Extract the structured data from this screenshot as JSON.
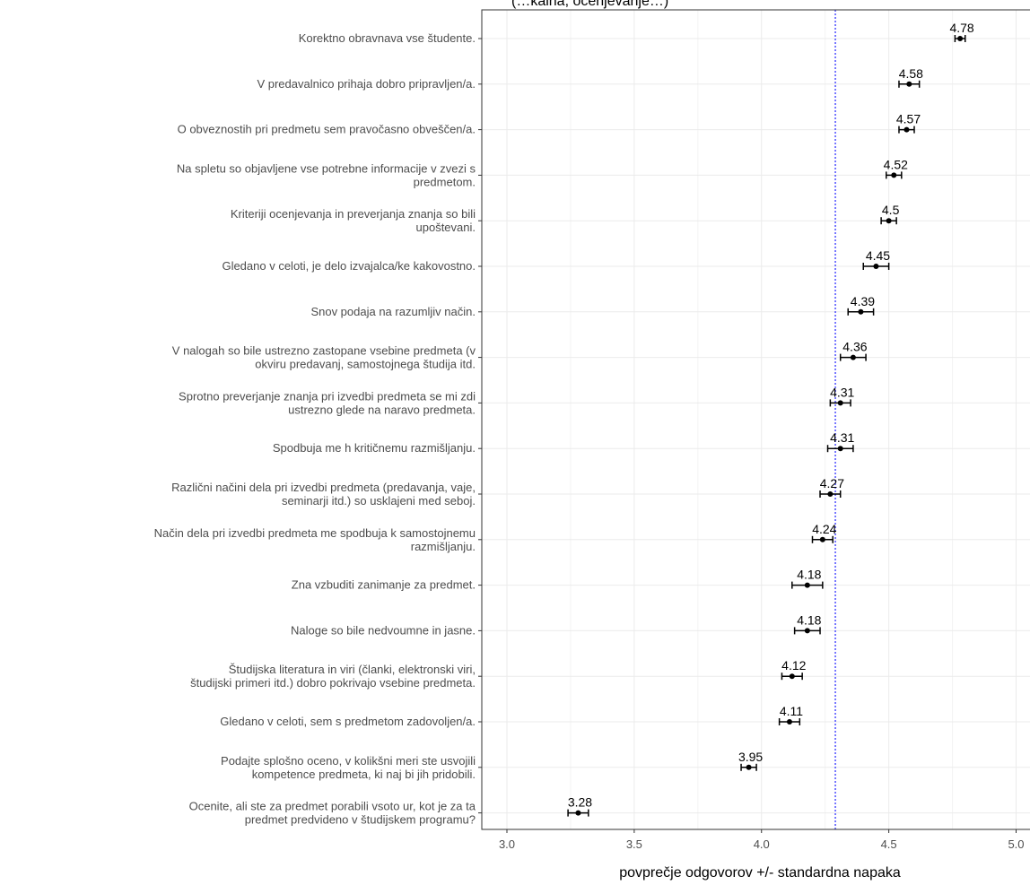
{
  "chart_data": {
    "type": "scatter",
    "orientation": "horizontal",
    "title_fragment": "(…kalna, ocenjevanje…)",
    "xlabel": "povprečje odgovorov +/- standardna napaka",
    "ylabel": "",
    "xlim": [
      2.9,
      5.05
    ],
    "xticks": [
      "3.0",
      "3.5",
      "4.0",
      "4.5",
      "5.0"
    ],
    "xtick_values": [
      3.0,
      3.5,
      4.0,
      4.5,
      5.0
    ],
    "reference_line": {
      "value": 4.29,
      "style": "dotted",
      "color": "#3333ff"
    },
    "grid": true,
    "items": [
      {
        "label": [
          "Korektno obravnava vse študente."
        ],
        "mean": 4.78,
        "mean_label": "4.78",
        "se": 0.02
      },
      {
        "label": [
          "V predavalnico prihaja dobro pripravljen/a."
        ],
        "mean": 4.58,
        "mean_label": "4.58",
        "se": 0.04
      },
      {
        "label": [
          "O obveznostih pri predmetu sem pravočasno obveščen/a."
        ],
        "mean": 4.57,
        "mean_label": "4.57",
        "se": 0.03
      },
      {
        "label": [
          "Na spletu so objavljene vse potrebne informacije v zvezi s",
          "predmetom."
        ],
        "mean": 4.52,
        "mean_label": "4.52",
        "se": 0.03
      },
      {
        "label": [
          "Kriteriji ocenjevanja in preverjanja znanja so bili",
          "upoštevani."
        ],
        "mean": 4.5,
        "mean_label": "4.5",
        "se": 0.03
      },
      {
        "label": [
          "Gledano v celoti, je delo izvajalca/ke kakovostno."
        ],
        "mean": 4.45,
        "mean_label": "4.45",
        "se": 0.05
      },
      {
        "label": [
          "Snov podaja na razumljiv način."
        ],
        "mean": 4.39,
        "mean_label": "4.39",
        "se": 0.05
      },
      {
        "label": [
          "V nalogah so bile ustrezno zastopane vsebine predmeta (v",
          "okviru predavanj, samostojnega študija itd."
        ],
        "mean": 4.36,
        "mean_label": "4.36",
        "se": 0.05
      },
      {
        "label": [
          "Sprotno preverjanje znanja pri izvedbi predmeta se mi zdi",
          "ustrezno glede na naravo predmeta."
        ],
        "mean": 4.31,
        "mean_label": "4.31",
        "se": 0.04
      },
      {
        "label": [
          "Spodbuja me h kritičnemu razmišljanju."
        ],
        "mean": 4.31,
        "mean_label": "4.31",
        "se": 0.05
      },
      {
        "label": [
          "Različni načini dela pri izvedbi predmeta (predavanja, vaje,",
          "seminarji itd.) so usklajeni med seboj."
        ],
        "mean": 4.27,
        "mean_label": "4.27",
        "se": 0.04
      },
      {
        "label": [
          "Način dela pri izvedbi predmeta me spodbuja k samostojnemu",
          "razmišljanju."
        ],
        "mean": 4.24,
        "mean_label": "4.24",
        "se": 0.04
      },
      {
        "label": [
          "Zna vzbuditi zanimanje za predmet."
        ],
        "mean": 4.18,
        "mean_label": "4.18",
        "se": 0.06
      },
      {
        "label": [
          "Naloge so bile nedvoumne in jasne."
        ],
        "mean": 4.18,
        "mean_label": "4.18",
        "se": 0.05
      },
      {
        "label": [
          "Študijska literatura in viri (članki, elektronski viri,",
          "študijski primeri itd.) dobro pokrivajo vsebine predmeta."
        ],
        "mean": 4.12,
        "mean_label": "4.12",
        "se": 0.04
      },
      {
        "label": [
          "Gledano v celoti, sem s predmetom zadovoljen/a."
        ],
        "mean": 4.11,
        "mean_label": "4.11",
        "se": 0.04
      },
      {
        "label": [
          "Podajte splošno oceno, v kolikšni meri ste usvojili",
          "kompetence predmeta, ki naj bi jih pridobili."
        ],
        "mean": 3.95,
        "mean_label": "3.95",
        "se": 0.03
      },
      {
        "label": [
          "Ocenite, ali ste za predmet porabili vsoto ur, kot je za ta",
          "predmet predvideno v študijskem programu?"
        ],
        "mean": 3.28,
        "mean_label": "3.28",
        "se": 0.04
      }
    ]
  },
  "colors": {
    "grid": "#ebebeb",
    "panel_border": "#333333",
    "point": "#000000",
    "reference": "#3333ff",
    "label_text": "#4d4d4d"
  }
}
